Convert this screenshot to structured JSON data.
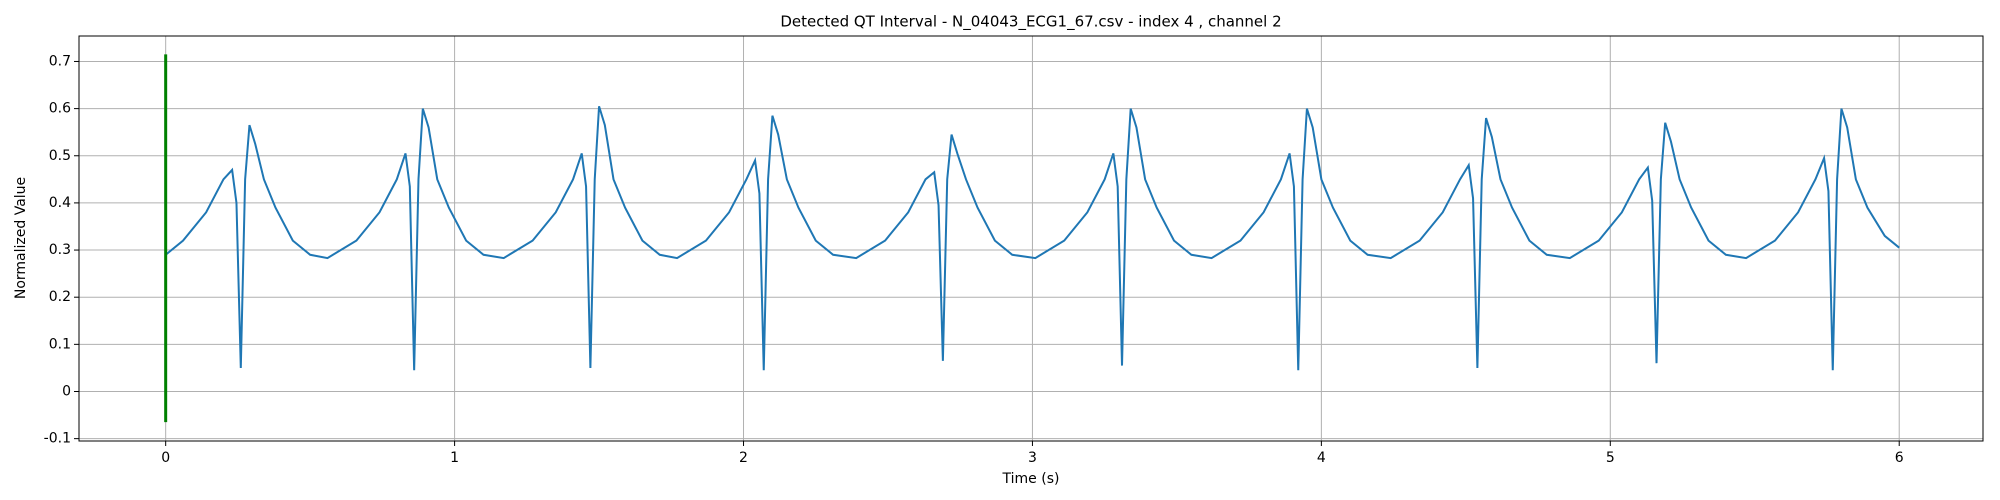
{
  "chart_data": {
    "type": "line",
    "title": "Detected QT Interval - N_04043_ECG1_67.csv - index 4 , channel 2",
    "x_label": "Time (s)",
    "y_label": "Normalized Value",
    "xlim": [
      -0.3,
      6.29
    ],
    "ylim": [
      -0.105,
      0.754
    ],
    "xticks": [
      0,
      1,
      2,
      3,
      4,
      5,
      6
    ],
    "yticks": [
      -0.1,
      0.0,
      0.1,
      0.2,
      0.3,
      0.4,
      0.5,
      0.6,
      0.7
    ],
    "grid": true,
    "series": [
      {
        "color": "#1f77b4",
        "x": [
          0,
          0.06,
          0.14,
          0.2,
          0.23,
          0.245,
          0.26,
          0.275,
          0.29,
          0.31,
          0.34,
          0.38,
          0.44,
          0.5,
          0.56,
          0.66,
          0.74,
          0.8,
          0.83,
          0.845,
          0.86,
          0.875,
          0.89,
          0.91,
          0.94,
          0.98,
          1.04,
          1.1,
          1.17,
          1.27,
          1.35,
          1.41,
          1.44,
          1.455,
          1.47,
          1.485,
          1.5,
          1.52,
          1.55,
          1.59,
          1.65,
          1.71,
          1.77,
          1.87,
          1.95,
          2.01,
          2.04,
          2.055,
          2.07,
          2.085,
          2.1,
          2.12,
          2.15,
          2.19,
          2.25,
          2.31,
          2.39,
          2.49,
          2.57,
          2.63,
          2.66,
          2.675,
          2.69,
          2.705,
          2.72,
          2.74,
          2.77,
          2.81,
          2.87,
          2.93,
          3.01,
          3.11,
          3.19,
          3.25,
          3.28,
          3.295,
          3.31,
          3.325,
          3.34,
          3.36,
          3.39,
          3.43,
          3.49,
          3.55,
          3.62,
          3.72,
          3.8,
          3.86,
          3.89,
          3.905,
          3.92,
          3.935,
          3.95,
          3.97,
          4.0,
          4.04,
          4.1,
          4.16,
          4.24,
          4.34,
          4.42,
          4.48,
          4.51,
          4.525,
          4.54,
          4.555,
          4.57,
          4.59,
          4.62,
          4.66,
          4.72,
          4.78,
          4.86,
          4.96,
          5.04,
          5.1,
          5.13,
          5.145,
          5.16,
          5.175,
          5.19,
          5.21,
          5.24,
          5.28,
          5.34,
          5.4,
          5.47,
          5.57,
          5.65,
          5.71,
          5.74,
          5.755,
          5.77,
          5.785,
          5.8,
          5.82,
          5.85,
          5.89,
          5.95,
          6.0
        ],
        "values": [
          0.29,
          0.32,
          0.38,
          0.45,
          0.47,
          0.4,
          0.05,
          0.45,
          0.565,
          0.525,
          0.45,
          0.39,
          0.32,
          0.29,
          0.283,
          0.32,
          0.38,
          0.45,
          0.505,
          0.435,
          0.045,
          0.45,
          0.6,
          0.56,
          0.45,
          0.39,
          0.32,
          0.29,
          0.283,
          0.32,
          0.38,
          0.45,
          0.505,
          0.435,
          0.05,
          0.45,
          0.605,
          0.565,
          0.45,
          0.39,
          0.32,
          0.29,
          0.283,
          0.32,
          0.38,
          0.45,
          0.49,
          0.42,
          0.045,
          0.45,
          0.585,
          0.545,
          0.45,
          0.39,
          0.32,
          0.29,
          0.283,
          0.32,
          0.38,
          0.45,
          0.465,
          0.395,
          0.065,
          0.45,
          0.545,
          0.505,
          0.45,
          0.39,
          0.32,
          0.29,
          0.283,
          0.32,
          0.38,
          0.45,
          0.505,
          0.435,
          0.055,
          0.45,
          0.6,
          0.56,
          0.45,
          0.39,
          0.32,
          0.29,
          0.283,
          0.32,
          0.38,
          0.45,
          0.505,
          0.435,
          0.045,
          0.45,
          0.6,
          0.56,
          0.45,
          0.39,
          0.32,
          0.29,
          0.283,
          0.32,
          0.38,
          0.45,
          0.48,
          0.41,
          0.05,
          0.45,
          0.58,
          0.54,
          0.45,
          0.39,
          0.32,
          0.29,
          0.283,
          0.32,
          0.38,
          0.45,
          0.475,
          0.405,
          0.06,
          0.45,
          0.57,
          0.53,
          0.45,
          0.39,
          0.32,
          0.29,
          0.283,
          0.32,
          0.38,
          0.45,
          0.495,
          0.425,
          0.045,
          0.45,
          0.6,
          0.56,
          0.45,
          0.39,
          0.33,
          0.305
        ]
      },
      {
        "color": "green",
        "x": [
          0,
          0
        ],
        "values": [
          -0.065,
          0.715
        ]
      }
    ]
  }
}
